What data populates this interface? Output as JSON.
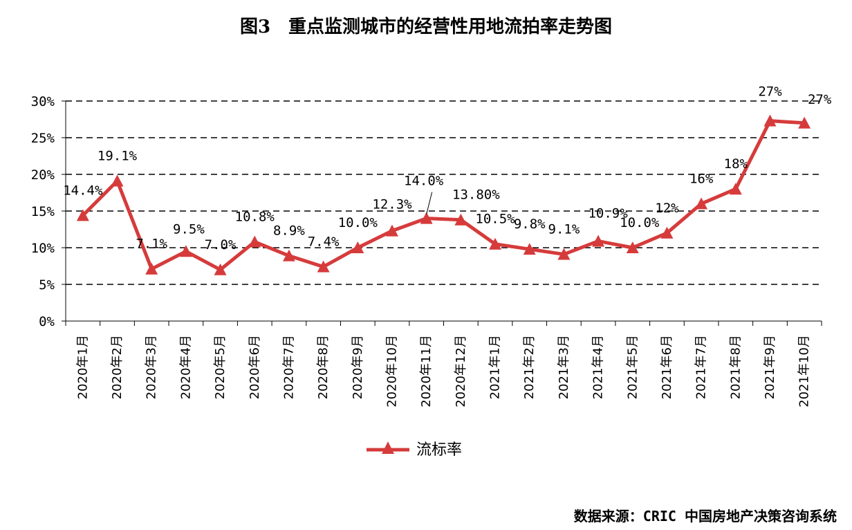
{
  "chart_data": {
    "type": "line",
    "title": "图3　重点监测城市的经营性用地流拍率走势图",
    "categories": [
      "2020年1月",
      "2020年2月",
      "2020年3月",
      "2020年4月",
      "2020年5月",
      "2020年6月",
      "2020年7月",
      "2020年8月",
      "2020年9月",
      "2020年10月",
      "2020年11月",
      "2020年12月",
      "2021年1月",
      "2021年2月",
      "2021年3月",
      "2021年4月",
      "2021年5月",
      "2021年6月",
      "2021年7月",
      "2021年8月",
      "2021年9月",
      "2021年10月"
    ],
    "series": [
      {
        "name": "流标率",
        "color": "#d63b3b",
        "values": [
          14.4,
          19.1,
          7.1,
          9.5,
          7.0,
          10.8,
          8.9,
          7.4,
          10.0,
          12.3,
          14.0,
          13.8,
          10.5,
          9.8,
          9.1,
          10.9,
          10.0,
          12,
          16,
          18,
          27.3,
          27
        ],
        "labels": [
          "14.4%",
          "19.1%",
          "7.1%",
          "9.5%",
          "7.0%",
          "10.8%",
          "8.9%",
          "7.4%",
          "10.0%",
          "12.3%",
          "14.0%",
          "13.80%",
          "10.5%",
          "9.8%",
          "9.1%",
          "10.9%",
          "10.0%",
          "12%",
          "16%",
          "18%",
          "27%",
          "27%"
        ]
      }
    ],
    "ylim": [
      0,
      30
    ],
    "yticks": [
      0,
      5,
      10,
      15,
      20,
      25,
      30
    ],
    "ytick_labels": [
      "0%",
      "5%",
      "10%",
      "15%",
      "20%",
      "25%",
      "30%"
    ],
    "grid": "horizontal-dashed",
    "legend": "bottom-center",
    "xlabel": "",
    "ylabel": ""
  },
  "source": "数据来源：CRIC 中国房地产决策咨询系统"
}
